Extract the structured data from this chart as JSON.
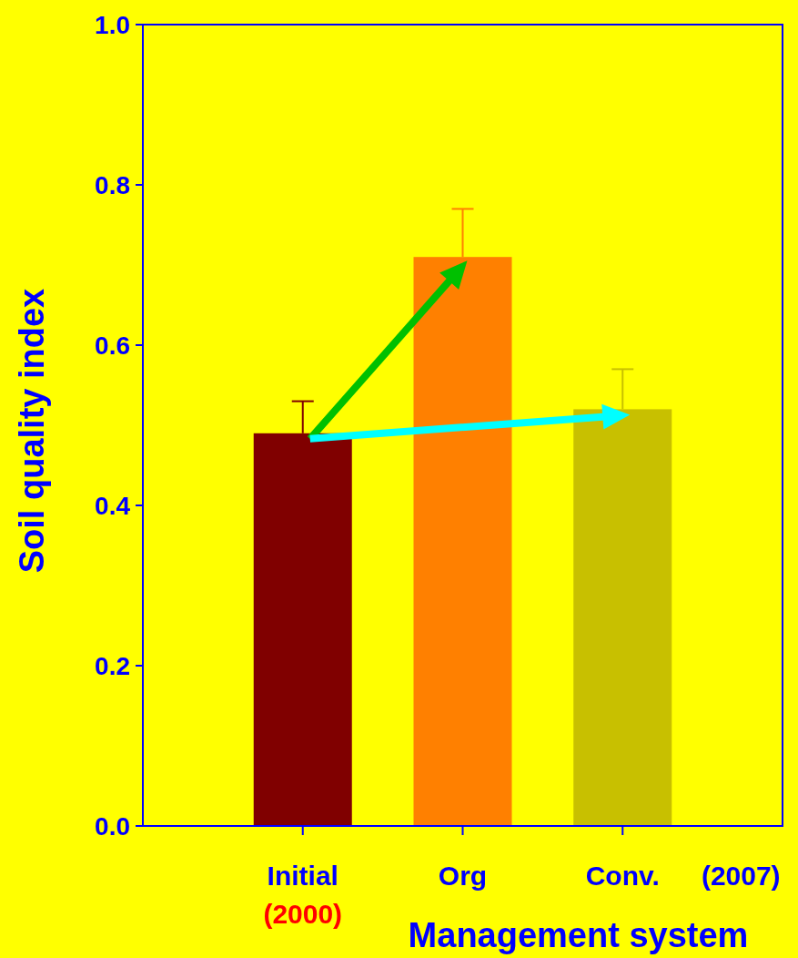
{
  "chart_data": {
    "type": "bar",
    "xlabel": "Management system",
    "ylabel": "Soil quality index",
    "categories": [
      "Initial",
      "Org",
      "Conv."
    ],
    "values": [
      0.49,
      0.71,
      0.52
    ],
    "colors": [
      "#800000",
      "#ff8000",
      "#c8c000"
    ],
    "errors": [
      [
        0.49,
        0.53
      ],
      [
        0.71,
        0.77
      ],
      [
        0.52,
        0.57
      ]
    ],
    "ylim": [
      0,
      1
    ],
    "yticks": [
      {
        "value": 0,
        "label": "0.0"
      },
      {
        "value": 0.2,
        "label": "0.2"
      },
      {
        "value": 0.4,
        "label": "0.4"
      },
      {
        "value": 0.6,
        "label": "0.6"
      },
      {
        "value": 0.8,
        "label": "0.8"
      },
      {
        "value": 1,
        "label": "1.0"
      }
    ],
    "grid": false,
    "annotations": [
      "(2000)",
      "(2007)"
    ]
  }
}
